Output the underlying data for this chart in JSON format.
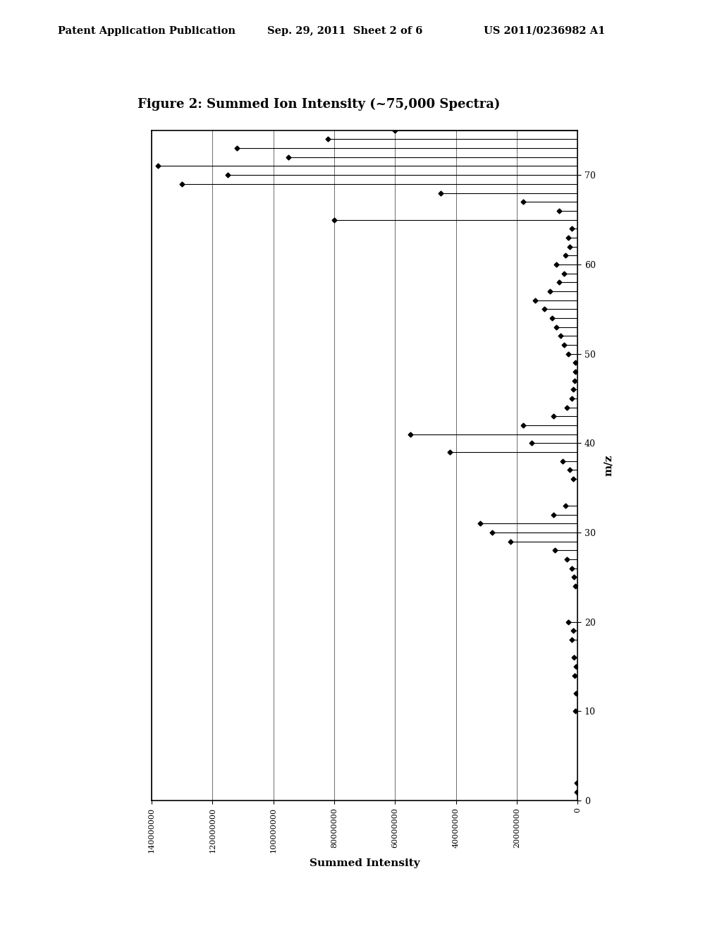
{
  "title": "Figure 2: Summed Ion Intensity (~75,000 Spectra)",
  "xlabel_bottom": "Summed Intensity",
  "ylabel_right": "m/z",
  "header_left": "Patent Application Publication",
  "header_center": "Sep. 29, 2011  Sheet 2 of 6",
  "header_right": "US 2011/0236982 A1",
  "x_intensity_max": 140000000,
  "x_intensity_min": 0,
  "y_mz_min": 0,
  "y_mz_max": 75,
  "intensity_ticks": [
    0,
    20000000,
    40000000,
    60000000,
    80000000,
    100000000,
    120000000,
    140000000
  ],
  "mz_ticks": [
    0,
    10,
    20,
    30,
    40,
    50,
    60,
    70
  ],
  "spectrum_data": [
    [
      1,
      300000
    ],
    [
      2,
      200000
    ],
    [
      10,
      700000
    ],
    [
      12,
      400000
    ],
    [
      14,
      900000
    ],
    [
      15,
      600000
    ],
    [
      16,
      1100000
    ],
    [
      18,
      2000000
    ],
    [
      19,
      1400000
    ],
    [
      20,
      3000000
    ],
    [
      24,
      800000
    ],
    [
      25,
      1200000
    ],
    [
      26,
      1800000
    ],
    [
      27,
      3500000
    ],
    [
      28,
      7500000
    ],
    [
      29,
      22000000
    ],
    [
      30,
      28000000
    ],
    [
      31,
      32000000
    ],
    [
      32,
      8000000
    ],
    [
      33,
      4000000
    ],
    [
      36,
      1500000
    ],
    [
      37,
      2500000
    ],
    [
      38,
      5000000
    ],
    [
      39,
      42000000
    ],
    [
      40,
      15000000
    ],
    [
      41,
      55000000
    ],
    [
      42,
      18000000
    ],
    [
      43,
      8000000
    ],
    [
      44,
      3500000
    ],
    [
      45,
      2000000
    ],
    [
      46,
      1500000
    ],
    [
      47,
      1000000
    ],
    [
      48,
      800000
    ],
    [
      49,
      700000
    ],
    [
      50,
      3000000
    ],
    [
      51,
      4500000
    ],
    [
      52,
      5500000
    ],
    [
      53,
      7000000
    ],
    [
      54,
      8500000
    ],
    [
      55,
      11000000
    ],
    [
      56,
      14000000
    ],
    [
      57,
      9000000
    ],
    [
      58,
      6000000
    ],
    [
      59,
      4500000
    ],
    [
      60,
      7000000
    ],
    [
      61,
      4000000
    ],
    [
      62,
      2500000
    ],
    [
      63,
      3000000
    ],
    [
      64,
      2000000
    ],
    [
      65,
      80000000
    ],
    [
      66,
      6000000
    ],
    [
      67,
      18000000
    ],
    [
      68,
      45000000
    ],
    [
      69,
      130000000
    ],
    [
      70,
      115000000
    ],
    [
      71,
      138000000
    ],
    [
      72,
      95000000
    ],
    [
      73,
      112000000
    ],
    [
      74,
      82000000
    ],
    [
      75,
      60000000
    ]
  ],
  "background_color": "#ffffff",
  "plot_bg_color": "#ffffff",
  "line_color": "#000000",
  "marker_color": "#000000",
  "grid_color": "#555555"
}
